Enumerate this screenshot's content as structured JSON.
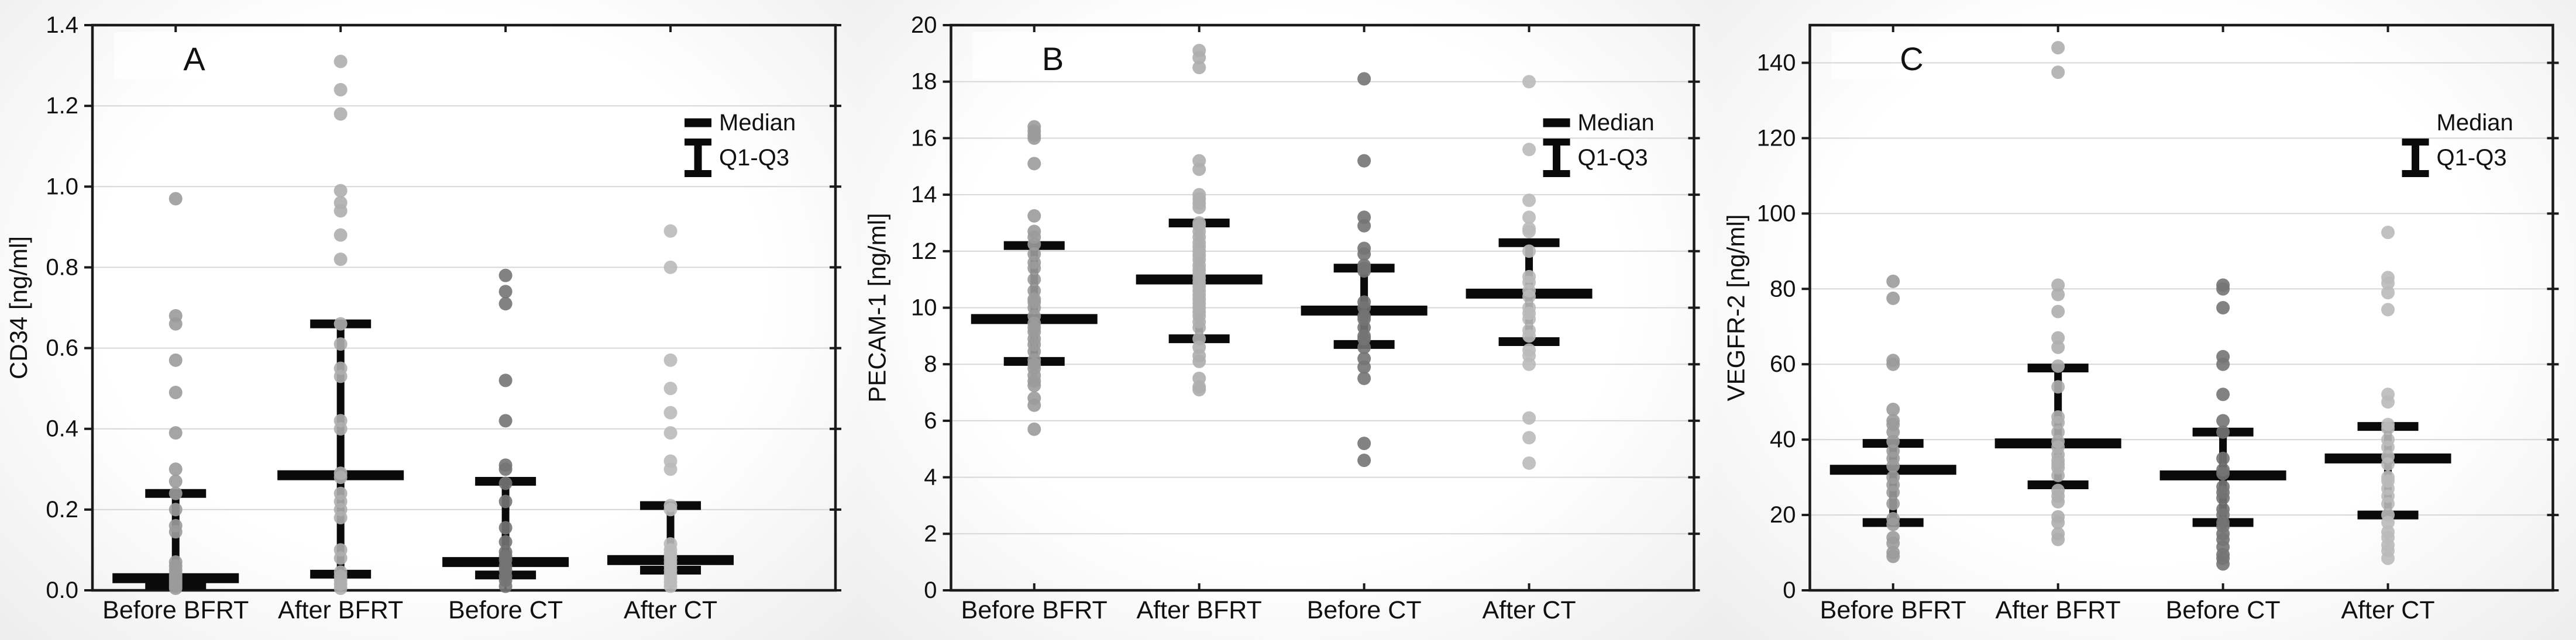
{
  "figure_title": "",
  "chart_data": [
    {
      "type": "scatter",
      "panel_label": "A",
      "ylabel": "CD34 [ng/ml]",
      "ylim": [
        0,
        1.4
      ],
      "yticks": [
        0.0,
        0.2,
        0.4,
        0.6,
        0.8,
        1.0,
        1.2,
        1.4
      ],
      "ytick_labels": [
        "0.0",
        "0.2",
        "0.4",
        "0.6",
        "0.8",
        "1.0",
        "1.2",
        "1.4"
      ],
      "categories": [
        "Before BFRT",
        "After BFRT",
        "Before CT",
        "After CT"
      ],
      "legend": {
        "median_label": "Median",
        "iqr_label": "Q1-Q3",
        "show_median_icon": true
      },
      "grid": true,
      "legend_position": "inside-upper-right",
      "series": [
        {
          "name": "Before BFRT",
          "color": "#9b9b9b",
          "median": 0.03,
          "q1": 0.012,
          "q3": 0.24,
          "values": [
            0.97,
            0.68,
            0.66,
            0.57,
            0.49,
            0.39,
            0.3,
            0.27,
            0.24,
            0.2,
            0.16,
            0.145,
            0.07,
            0.06,
            0.05,
            0.04,
            0.035,
            0.03,
            0.025,
            0.02,
            0.015,
            0.01,
            0.005
          ]
        },
        {
          "name": "After BFRT",
          "color": "#aeaeae",
          "median": 0.285,
          "q1": 0.04,
          "q3": 0.66,
          "values": [
            1.31,
            1.24,
            1.18,
            0.99,
            0.96,
            0.94,
            0.88,
            0.82,
            0.66,
            0.61,
            0.55,
            0.53,
            0.42,
            0.4,
            0.29,
            0.28,
            0.24,
            0.22,
            0.2,
            0.18,
            0.1,
            0.08,
            0.045,
            0.035,
            0.025,
            0.015,
            0.005
          ]
        },
        {
          "name": "Before CT",
          "color": "#747474",
          "median": 0.07,
          "q1": 0.038,
          "q3": 0.27,
          "values": [
            0.78,
            0.74,
            0.71,
            0.52,
            0.42,
            0.31,
            0.3,
            0.265,
            0.22,
            0.155,
            0.12,
            0.095,
            0.085,
            0.075,
            0.06,
            0.05,
            0.035,
            0.025,
            0.01
          ]
        },
        {
          "name": "After CT",
          "color": "#bababa",
          "median": 0.075,
          "q1": 0.05,
          "q3": 0.21,
          "values": [
            0.89,
            0.8,
            0.57,
            0.5,
            0.44,
            0.39,
            0.32,
            0.3,
            0.21,
            0.2,
            0.115,
            0.1,
            0.09,
            0.08,
            0.07,
            0.06,
            0.05,
            0.04,
            0.03,
            0.02,
            0.01
          ]
        }
      ]
    },
    {
      "type": "scatter",
      "panel_label": "B",
      "ylabel": "PECAM-1 [ng/ml]",
      "ylim": [
        0,
        20
      ],
      "yticks": [
        0,
        2,
        4,
        6,
        8,
        10,
        12,
        14,
        16,
        18,
        20
      ],
      "ytick_labels": [
        "0",
        "2",
        "4",
        "6",
        "8",
        "10",
        "12",
        "14",
        "16",
        "18",
        "20"
      ],
      "categories": [
        "Before BFRT",
        "After BFRT",
        "Before CT",
        "After CT"
      ],
      "legend": {
        "median_label": "Median",
        "iqr_label": "Q1-Q3",
        "show_median_icon": true
      },
      "grid": true,
      "legend_position": "inside-upper-right",
      "series": [
        {
          "name": "Before BFRT",
          "color": "#9b9b9b",
          "median": 9.6,
          "q1": 8.1,
          "q3": 12.2,
          "values": [
            16.4,
            16.25,
            16.1,
            16.0,
            15.1,
            13.25,
            12.7,
            12.5,
            12.25,
            11.9,
            11.6,
            11.4,
            11.0,
            10.6,
            10.3,
            10.2,
            10.0,
            9.7,
            9.45,
            9.3,
            9.15,
            8.9,
            8.7,
            8.45,
            8.15,
            8.0,
            7.85,
            7.6,
            7.4,
            7.25,
            6.8,
            6.55,
            5.7
          ]
        },
        {
          "name": "After BFRT",
          "color": "#aeaeae",
          "median": 11.0,
          "q1": 8.9,
          "q3": 13.0,
          "values": [
            19.1,
            18.85,
            18.5,
            15.2,
            14.9,
            14.0,
            13.85,
            13.7,
            13.55,
            13.0,
            12.9,
            12.7,
            12.5,
            12.3,
            12.15,
            12.0,
            11.85,
            11.7,
            11.5,
            11.35,
            11.2,
            11.05,
            10.9,
            10.75,
            10.6,
            10.45,
            10.3,
            10.15,
            10.0,
            9.85,
            9.7,
            9.5,
            9.3,
            8.9,
            8.6,
            8.3,
            8.1,
            7.5,
            7.2,
            7.1
          ]
        },
        {
          "name": "Before CT",
          "color": "#747474",
          "median": 9.9,
          "q1": 8.7,
          "q3": 11.4,
          "values": [
            18.1,
            15.2,
            13.2,
            12.9,
            12.1,
            11.9,
            11.5,
            11.4,
            11.3,
            10.2,
            10.0,
            9.7,
            9.6,
            9.3,
            9.0,
            8.9,
            8.6,
            8.2,
            7.9,
            7.5,
            5.2,
            4.6
          ]
        },
        {
          "name": "After CT",
          "color": "#bababa",
          "median": 10.5,
          "q1": 8.8,
          "q3": 12.3,
          "values": [
            18.0,
            15.6,
            13.8,
            13.2,
            12.8,
            12.7,
            12.0,
            11.1,
            10.9,
            10.6,
            10.4,
            10.0,
            9.8,
            9.6,
            9.2,
            9.0,
            8.5,
            8.3,
            8.0,
            6.1,
            5.4,
            4.5
          ]
        }
      ]
    },
    {
      "type": "scatter",
      "panel_label": "C",
      "ylabel": "VEGFR-2 [ng/ml]",
      "ylim": [
        0,
        150
      ],
      "yticks": [
        0,
        20,
        40,
        60,
        80,
        100,
        120,
        140
      ],
      "ytick_labels": [
        "0",
        "20",
        "40",
        "60",
        "80",
        "100",
        "120",
        "140"
      ],
      "categories": [
        "Before BFRT",
        "After BFRT",
        "Before CT",
        "After CT"
      ],
      "legend": {
        "median_label": "Median",
        "iqr_label": "Q1-Q3",
        "show_median_icon": false
      },
      "grid": true,
      "legend_position": "inside-upper-right",
      "series": [
        {
          "name": "Before BFRT",
          "color": "#9b9b9b",
          "median": 32,
          "q1": 18,
          "q3": 39,
          "values": [
            82,
            77.5,
            61,
            60,
            48,
            45,
            44,
            42,
            39.5,
            37,
            35,
            33,
            30,
            28,
            26,
            23,
            19,
            17.5,
            14,
            12.5,
            10,
            9
          ]
        },
        {
          "name": "After BFRT",
          "color": "#aeaeae",
          "median": 39,
          "q1": 28,
          "q3": 59,
          "values": [
            144,
            137.5,
            81,
            78.5,
            74,
            67,
            64.5,
            59.5,
            54,
            46,
            44.5,
            42,
            39.5,
            38,
            36,
            34.5,
            33.5,
            32.5,
            30.5,
            26.5,
            25,
            23.5,
            19.5,
            18,
            15,
            13.5
          ]
        },
        {
          "name": "Before CT",
          "color": "#747474",
          "median": 30.5,
          "q1": 18,
          "q3": 42,
          "values": [
            81,
            80,
            75,
            62,
            60,
            52,
            45,
            42,
            35,
            32,
            31,
            27.5,
            26,
            24.5,
            21.5,
            20,
            18,
            17,
            15,
            13.5,
            11.5,
            9.5,
            8.5,
            7
          ]
        },
        {
          "name": "After CT",
          "color": "#bababa",
          "median": 35,
          "q1": 20,
          "q3": 43.5,
          "values": [
            95,
            83,
            81.5,
            79,
            74.5,
            52,
            50,
            44,
            43,
            40,
            38,
            35.5,
            33.5,
            30,
            29,
            27,
            25,
            23,
            20,
            18,
            15.5,
            14,
            12,
            10.5,
            8.5
          ]
        }
      ]
    }
  ],
  "style": {
    "grid_color": "#d7d7d7",
    "axis_color": "#1a1a1a",
    "bar_color": "#0a0a0a",
    "text_color": "#111111"
  }
}
